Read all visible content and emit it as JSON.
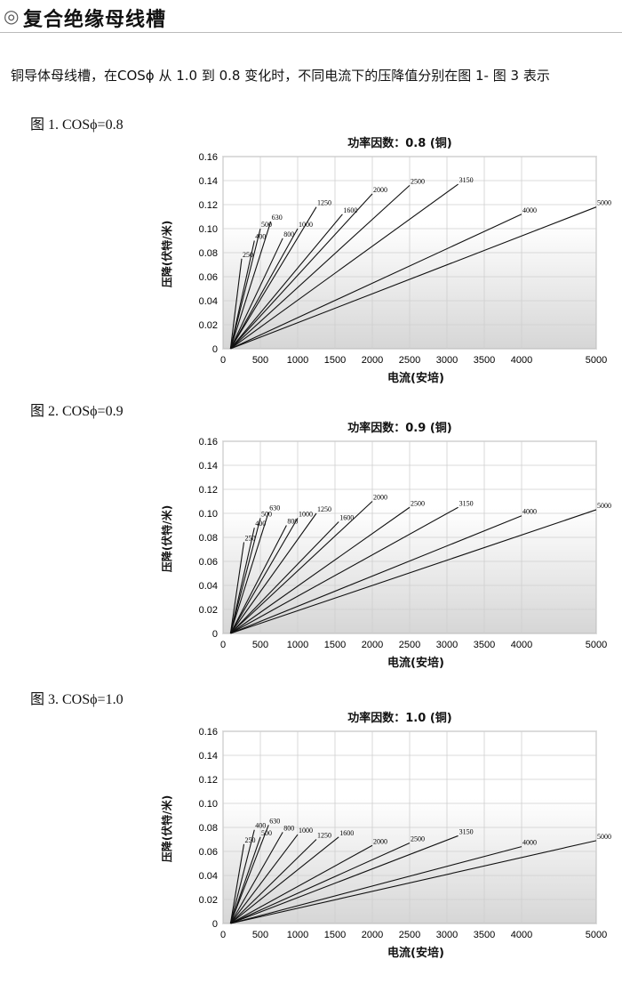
{
  "header": {
    "mark": "◎",
    "title": "复合绝缘母线槽"
  },
  "intro": "铜导体母线槽，在COSϕ 从 1.0 到 0.8 变化时，不同电流下的压降值分别在图 1- 图 3 表示",
  "colors": {
    "line": "#111111",
    "grid": "#cfcfcf",
    "bg_top": "#ffffff",
    "bg_bottom": "#d6d6d6"
  },
  "chart_data": [
    {
      "type": "line",
      "caption": "图 1. COSϕ=0.8",
      "title": "功率因数：0.8 (铜)",
      "xlabel": "电流(安培)",
      "ylabel": "压降(伏特/米)",
      "xlim": [
        0,
        5000
      ],
      "ylim": [
        0,
        0.16
      ],
      "xticks": [
        0,
        500,
        1000,
        1500,
        2000,
        2500,
        3000,
        3500,
        4000,
        5000
      ],
      "yticks": [
        0,
        0.02,
        0.04,
        0.06,
        0.08,
        0.1,
        0.12,
        0.14,
        0.16
      ],
      "series": [
        {
          "name": "250",
          "x": [
            100,
            250
          ],
          "y": [
            0,
            0.075
          ]
        },
        {
          "name": "400",
          "x": [
            100,
            420
          ],
          "y": [
            0,
            0.09
          ]
        },
        {
          "name": "500",
          "x": [
            100,
            500
          ],
          "y": [
            0,
            0.1
          ]
        },
        {
          "name": "630",
          "x": [
            100,
            640
          ],
          "y": [
            0,
            0.106
          ]
        },
        {
          "name": "800",
          "x": [
            100,
            800
          ],
          "y": [
            0,
            0.092
          ]
        },
        {
          "name": "1000",
          "x": [
            100,
            1000
          ],
          "y": [
            0,
            0.1
          ]
        },
        {
          "name": "1250",
          "x": [
            100,
            1250
          ],
          "y": [
            0,
            0.118
          ]
        },
        {
          "name": "1600",
          "x": [
            100,
            1600
          ],
          "y": [
            0,
            0.112
          ]
        },
        {
          "name": "2000",
          "x": [
            100,
            2000
          ],
          "y": [
            0,
            0.129
          ]
        },
        {
          "name": "2500",
          "x": [
            100,
            2500
          ],
          "y": [
            0,
            0.136
          ]
        },
        {
          "name": "3150",
          "x": [
            100,
            3150
          ],
          "y": [
            0,
            0.137
          ]
        },
        {
          "name": "4000",
          "x": [
            100,
            4000
          ],
          "y": [
            0,
            0.112
          ]
        },
        {
          "name": "5000",
          "x": [
            100,
            5000
          ],
          "y": [
            0,
            0.118
          ]
        }
      ]
    },
    {
      "type": "line",
      "caption": "图 2. COSϕ=0.9",
      "title": "功率因数：0.9 (铜)",
      "xlabel": "电流(安培)",
      "ylabel": "压降(伏特/米)",
      "xlim": [
        0,
        5000
      ],
      "ylim": [
        0,
        0.16
      ],
      "xticks": [
        0,
        500,
        1000,
        1500,
        2000,
        2500,
        3000,
        3500,
        4000,
        5000
      ],
      "yticks": [
        0,
        0.02,
        0.04,
        0.06,
        0.08,
        0.1,
        0.12,
        0.14,
        0.16
      ],
      "series": [
        {
          "name": "250",
          "x": [
            100,
            280
          ],
          "y": [
            0,
            0.076
          ]
        },
        {
          "name": "400",
          "x": [
            100,
            420
          ],
          "y": [
            0,
            0.088
          ]
        },
        {
          "name": "500",
          "x": [
            100,
            500
          ],
          "y": [
            0,
            0.096
          ]
        },
        {
          "name": "630",
          "x": [
            100,
            610
          ],
          "y": [
            0,
            0.101
          ]
        },
        {
          "name": "800",
          "x": [
            100,
            850
          ],
          "y": [
            0,
            0.09
          ]
        },
        {
          "name": "1000",
          "x": [
            100,
            1000
          ],
          "y": [
            0,
            0.096
          ]
        },
        {
          "name": "1250",
          "x": [
            100,
            1250
          ],
          "y": [
            0,
            0.1
          ]
        },
        {
          "name": "1600",
          "x": [
            100,
            1550
          ],
          "y": [
            0,
            0.093
          ]
        },
        {
          "name": "2000",
          "x": [
            100,
            2000
          ],
          "y": [
            0,
            0.11
          ]
        },
        {
          "name": "2500",
          "x": [
            100,
            2500
          ],
          "y": [
            0,
            0.105
          ]
        },
        {
          "name": "3150",
          "x": [
            100,
            3150
          ],
          "y": [
            0,
            0.105
          ]
        },
        {
          "name": "4000",
          "x": [
            100,
            4000
          ],
          "y": [
            0,
            0.098
          ]
        },
        {
          "name": "5000",
          "x": [
            100,
            5000
          ],
          "y": [
            0,
            0.103
          ]
        }
      ]
    },
    {
      "type": "line",
      "caption": "图 3. COSϕ=1.0",
      "title": "功率因数：1.0 (铜)",
      "xlabel": "电流(安培)",
      "ylabel": "压降(伏特/米)",
      "xlim": [
        0,
        5000
      ],
      "ylim": [
        0,
        0.16
      ],
      "xticks": [
        0,
        500,
        1000,
        1500,
        2000,
        2500,
        3000,
        3500,
        4000,
        5000
      ],
      "yticks": [
        0,
        0.02,
        0.04,
        0.06,
        0.08,
        0.1,
        0.12,
        0.14,
        0.16
      ],
      "series": [
        {
          "name": "250",
          "x": [
            100,
            280
          ],
          "y": [
            0,
            0.066
          ]
        },
        {
          "name": "400",
          "x": [
            100,
            420
          ],
          "y": [
            0,
            0.078
          ]
        },
        {
          "name": "500",
          "x": [
            100,
            500
          ],
          "y": [
            0,
            0.072
          ]
        },
        {
          "name": "630",
          "x": [
            100,
            610
          ],
          "y": [
            0,
            0.082
          ]
        },
        {
          "name": "800",
          "x": [
            100,
            800
          ],
          "y": [
            0,
            0.076
          ]
        },
        {
          "name": "1000",
          "x": [
            100,
            1000
          ],
          "y": [
            0,
            0.074
          ]
        },
        {
          "name": "1250",
          "x": [
            100,
            1250
          ],
          "y": [
            0,
            0.07
          ]
        },
        {
          "name": "1600",
          "x": [
            100,
            1550
          ],
          "y": [
            0,
            0.072
          ]
        },
        {
          "name": "2000",
          "x": [
            100,
            2000
          ],
          "y": [
            0,
            0.065
          ]
        },
        {
          "name": "2500",
          "x": [
            100,
            2500
          ],
          "y": [
            0,
            0.067
          ]
        },
        {
          "name": "3150",
          "x": [
            100,
            3150
          ],
          "y": [
            0,
            0.073
          ]
        },
        {
          "name": "4000",
          "x": [
            100,
            4000
          ],
          "y": [
            0,
            0.064
          ]
        },
        {
          "name": "5000",
          "x": [
            100,
            5000
          ],
          "y": [
            0,
            0.069
          ]
        }
      ]
    }
  ]
}
